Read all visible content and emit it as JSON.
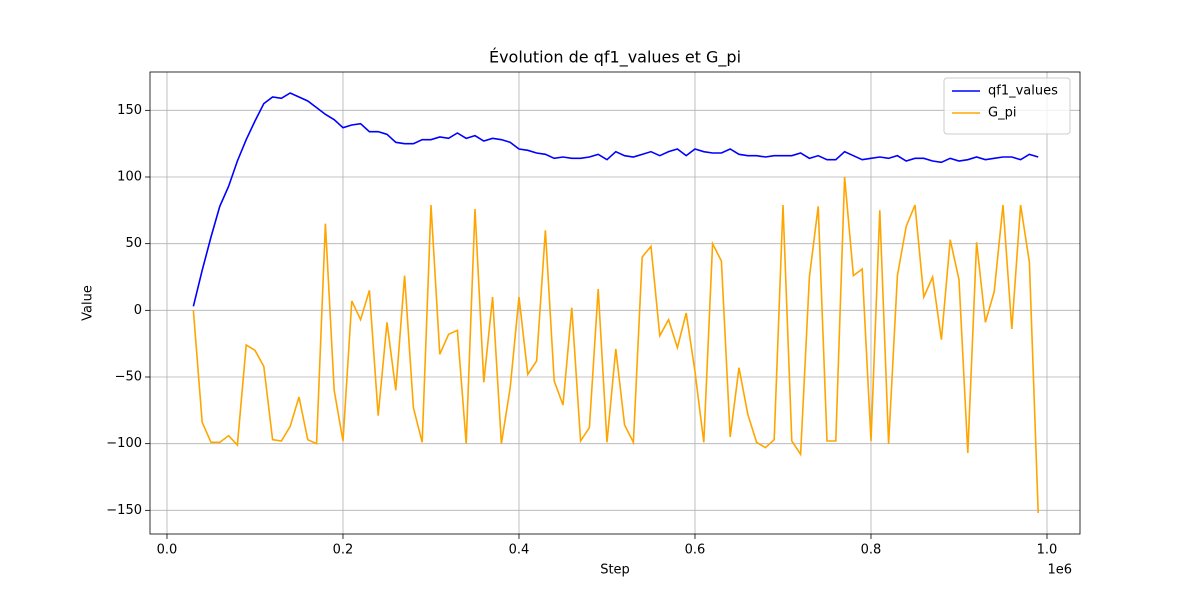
{
  "chart_data": {
    "type": "line",
    "title": "Évolution de qf1_values et G_pi",
    "x_label": "Step",
    "y_label": "Value",
    "x_offset_label": "1e6",
    "x": [
      30000,
      40000,
      50000,
      60000,
      70000,
      80000,
      90000,
      100000,
      110000,
      120000,
      130000,
      140000,
      150000,
      160000,
      170000,
      180000,
      190000,
      200000,
      210000,
      220000,
      230000,
      240000,
      250000,
      260000,
      270000,
      280000,
      290000,
      300000,
      310000,
      320000,
      330000,
      340000,
      350000,
      360000,
      370000,
      380000,
      390000,
      400000,
      410000,
      420000,
      430000,
      440000,
      450000,
      460000,
      470000,
      480000,
      490000,
      500000,
      510000,
      520000,
      530000,
      540000,
      550000,
      560000,
      570000,
      580000,
      590000,
      600000,
      610000,
      620000,
      630000,
      640000,
      650000,
      660000,
      670000,
      680000,
      690000,
      700000,
      710000,
      720000,
      730000,
      740000,
      750000,
      760000,
      770000,
      780000,
      790000,
      800000,
      810000,
      820000,
      830000,
      840000,
      850000,
      860000,
      870000,
      880000,
      890000,
      900000,
      910000,
      920000,
      930000,
      940000,
      950000,
      960000,
      970000,
      980000,
      990000
    ],
    "series": [
      {
        "name": "qf1_values",
        "color": "#0000ff",
        "values": [
          3,
          30,
          55,
          78,
          93,
          112,
          128,
          142,
          155,
          160,
          159,
          163,
          160,
          157,
          152,
          147,
          143,
          137,
          139,
          140,
          134,
          134,
          132,
          126,
          125,
          125,
          128,
          128,
          130,
          129,
          133,
          129,
          131,
          127,
          129,
          128,
          126,
          121,
          120,
          118,
          117,
          114,
          115,
          114,
          114,
          115,
          117,
          113,
          119,
          116,
          115,
          117,
          119,
          116,
          119,
          121,
          116,
          121,
          119,
          118,
          118,
          121,
          117,
          116,
          116,
          115,
          116,
          116,
          116,
          118,
          114,
          116,
          113,
          113,
          119,
          116,
          113,
          114,
          115,
          114,
          116,
          112,
          114,
          114,
          112,
          111,
          114,
          112,
          113,
          115,
          113,
          114,
          115,
          115,
          113,
          117,
          115
        ]
      },
      {
        "name": "G_pi",
        "color": "#ffa500",
        "values": [
          0,
          -84,
          -99,
          -99,
          -94,
          -101,
          -26,
          -30,
          -42,
          -97,
          -98,
          -87,
          -65,
          -97,
          -100,
          65,
          -60,
          -98,
          7,
          -7,
          15,
          -79,
          -9,
          -60,
          26,
          -73,
          -99,
          79,
          -33,
          -18,
          -15,
          -100,
          76,
          -54,
          10,
          -100,
          -58,
          10,
          -48,
          -38,
          60,
          -53,
          -71,
          2,
          -98,
          -88,
          16,
          -99,
          -29,
          -86,
          -99,
          40,
          48,
          -19,
          -7,
          -28,
          -2,
          -46,
          -99,
          50,
          37,
          -95,
          -43,
          -78,
          -99,
          -103,
          -97,
          79,
          -98,
          -108,
          25,
          78,
          -98,
          -98,
          100,
          26,
          31,
          -98,
          75,
          -100,
          26,
          63,
          79,
          10,
          25,
          -22,
          53,
          23,
          -107,
          51,
          -9,
          14,
          79,
          -14,
          79,
          36,
          -152
        ]
      }
    ],
    "xlim": [
      -19300,
      1037500
    ],
    "xticks": [
      {
        "value": 0,
        "label": "0.0"
      },
      {
        "value": 200000,
        "label": "0.2"
      },
      {
        "value": 400000,
        "label": "0.4"
      },
      {
        "value": 600000,
        "label": "0.6"
      },
      {
        "value": 800000,
        "label": "0.8"
      },
      {
        "value": 1000000,
        "label": "1.0"
      }
    ],
    "ylim": [
      -167.75,
      178.75
    ],
    "yticks": [
      {
        "value": -150,
        "label": "−150"
      },
      {
        "value": -100,
        "label": "−100"
      },
      {
        "value": -50,
        "label": "−50"
      },
      0,
      50,
      100,
      150
    ],
    "grid": true,
    "legend": "upper right"
  }
}
